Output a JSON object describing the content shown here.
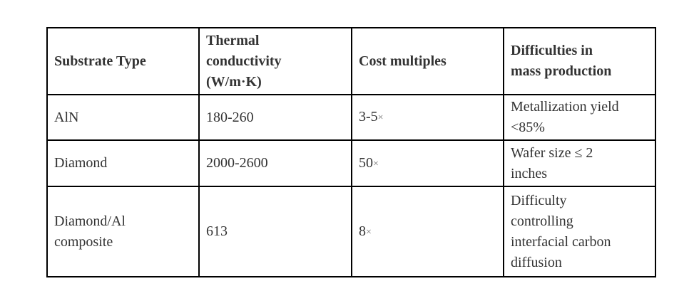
{
  "table": {
    "headers": {
      "substrate": "Substrate Type",
      "conductivity": "Thermal\nconductivity\n(W/m·K)",
      "cost": "Cost multiples",
      "difficulty": "Difficulties in\nmass production"
    },
    "rows": [
      {
        "substrate": "AlN",
        "conductivity": "180-260",
        "cost_value": "3-5",
        "cost_times": "×",
        "difficulty": "Metallization yield\n<85%"
      },
      {
        "substrate": "Diamond",
        "conductivity": "2000-2600",
        "cost_value": "50",
        "cost_times": "×",
        "difficulty": "Wafer size ≤ 2\ninches"
      },
      {
        "substrate": "Diamond/Al\ncomposite",
        "conductivity": "613",
        "cost_value": "8",
        "cost_times": "×",
        "difficulty": "Difficulty\ncontrolling\ninterfacial carbon\ndiffusion"
      }
    ],
    "colors": {
      "text": "#333333",
      "border": "#000000",
      "background": "#ffffff",
      "multiply_sign": "#777777"
    }
  },
  "chart_data": {
    "type": "table",
    "title": "",
    "columns": [
      "Substrate Type",
      "Thermal conductivity (W/m·K)",
      "Cost multiples",
      "Difficulties in mass production"
    ],
    "rows": [
      [
        "AlN",
        "180-260",
        "3-5×",
        "Metallization yield <85%"
      ],
      [
        "Diamond",
        "2000-2600",
        "50×",
        "Wafer size ≤ 2 inches"
      ],
      [
        "Diamond/Al composite",
        "613",
        "8×",
        "Difficulty controlling interfacial carbon diffusion"
      ]
    ]
  }
}
